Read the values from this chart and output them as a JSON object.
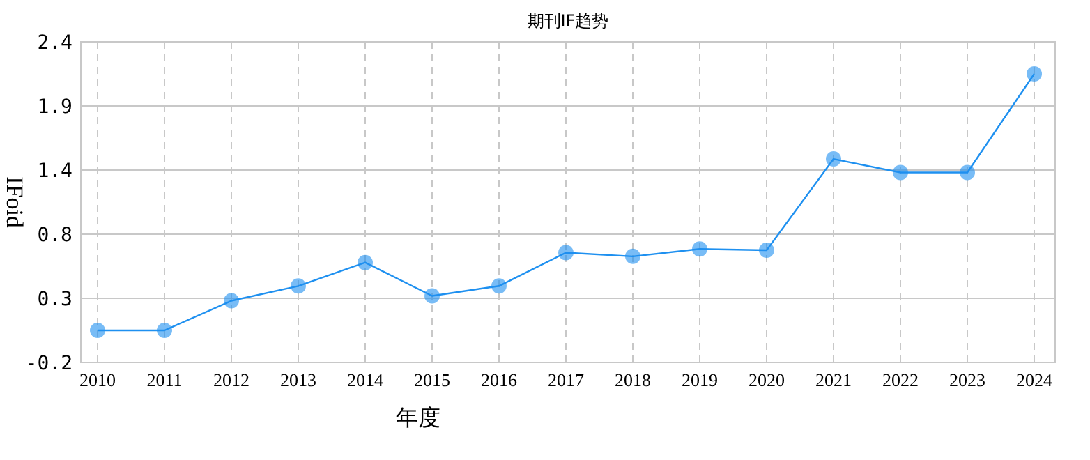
{
  "chart_data": {
    "type": "line",
    "title": "期刊IF趋势",
    "xlabel": "年度",
    "ylabel": "IFoid",
    "categories": [
      "2010",
      "2011",
      "2012",
      "2013",
      "2014",
      "2015",
      "2016",
      "2017",
      "2018",
      "2019",
      "2020",
      "2021",
      "2022",
      "2023",
      "2024"
    ],
    "series": [
      {
        "color": "#1e90f0",
        "values": [
          0.06,
          0.06,
          0.3,
          0.42,
          0.61,
          0.34,
          0.42,
          0.69,
          0.66,
          0.72,
          0.71,
          1.45,
          1.34,
          1.34,
          2.14
        ]
      }
    ],
    "ylim": [
      -0.2,
      2.4
    ],
    "yticks": [
      -0.2,
      {
        "value": 0.32,
        "label": "0.3"
      },
      {
        "value": 0.84,
        "label": "0.8"
      },
      {
        "value": 1.36,
        "label": "1.4"
      },
      {
        "value": 1.88,
        "label": "1.9"
      },
      2.4
    ],
    "grid": true,
    "marker": "circle",
    "line_style": "solid"
  }
}
